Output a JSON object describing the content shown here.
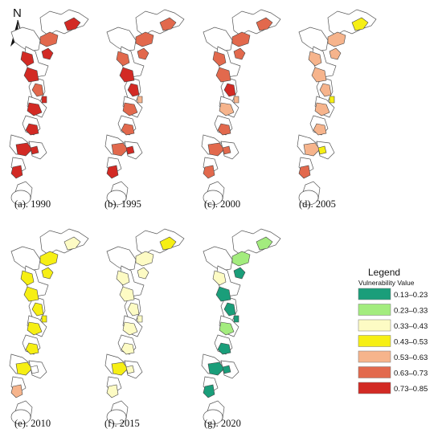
{
  "north_arrow": {
    "label": "N"
  },
  "legend": {
    "title": "Legend",
    "subtitle": "Vulnerability Value",
    "classes": [
      {
        "label": "0.13–0.23",
        "color": "#1a9e7a"
      },
      {
        "label": "0.23–0.33",
        "color": "#a3ec7e"
      },
      {
        "label": "0.33–0.43",
        "color": "#fdfbc4"
      },
      {
        "label": "0.43–0.53",
        "color": "#f6ef14"
      },
      {
        "label": "0.53–0.63",
        "color": "#f6b48c"
      },
      {
        "label": "0.63–0.73",
        "color": "#e2694d"
      },
      {
        "label": "0.73–0.85",
        "color": "#d22a24"
      }
    ]
  },
  "panels": [
    {
      "label": "(a). 1990",
      "regions": {
        "lnA": 5,
        "lnB": 6,
        "jjj": 6,
        "sd": 6,
        "hb": 6,
        "js": 5,
        "sh": 6,
        "zj": 6,
        "fj": 6,
        "gd": 6,
        "gx": 6,
        "hn": 6
      }
    },
    {
      "label": "(b). 1995",
      "regions": {
        "lnA": 5,
        "lnB": 5,
        "jjj": 5,
        "sd": 6,
        "hb": 5,
        "js": 6,
        "sh": 4,
        "zj": 5,
        "fj": 5,
        "gd": 5,
        "gx": 6,
        "hn": 6
      }
    },
    {
      "label": "(c). 2000",
      "regions": {
        "lnA": 5,
        "lnB": 5,
        "jjj": 5,
        "sd": 5,
        "hb": 5,
        "js": 6,
        "sh": 4,
        "zj": 4,
        "fj": 5,
        "gd": 5,
        "gx": 5,
        "hn": 5
      }
    },
    {
      "label": "(d). 2005",
      "regions": {
        "lnA": 4,
        "lnB": 3,
        "jjj": 4,
        "sd": 4,
        "hb": 4,
        "js": 4,
        "sh": 3,
        "zj": 4,
        "fj": 4,
        "gd": 4,
        "gx": 3,
        "hn": 5
      }
    },
    {
      "label": "(e). 2010",
      "regions": {
        "lnA": 3,
        "lnB": 2,
        "jjj": 3,
        "sd": 3,
        "hb": 3,
        "js": 3,
        "sh": 3,
        "zj": 3,
        "fj": 3,
        "gd": 3,
        "gx": -1,
        "hn": 4
      }
    },
    {
      "label": "(f). 2015",
      "regions": {
        "lnA": 2,
        "lnB": 3,
        "jjj": 2,
        "sd": 2,
        "hb": 2,
        "js": 2,
        "sh": 2,
        "zj": 2,
        "fj": 2,
        "gd": 3,
        "gx": 2,
        "hn": 2
      }
    },
    {
      "label": "(g). 2020",
      "regions": {
        "lnA": 1,
        "lnB": 1,
        "jjj": 2,
        "sd": 0,
        "hb": 0,
        "js": 0,
        "sh": 0,
        "zj": 1,
        "fj": 0,
        "gd": 0,
        "gx": 0,
        "hn": 0
      }
    }
  ]
}
